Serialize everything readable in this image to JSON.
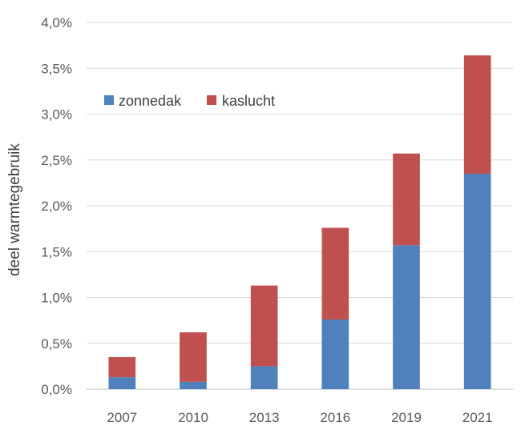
{
  "chart_data": {
    "type": "bar",
    "stacked": true,
    "title": "",
    "xlabel": "",
    "ylabel": "deel warmtegebruik",
    "categories": [
      "2007",
      "2010",
      "2013",
      "2016",
      "2019",
      "2021"
    ],
    "series": [
      {
        "name": "zonnedak",
        "color": "#4f81bd",
        "values": [
          0.13,
          0.08,
          0.25,
          0.76,
          1.57,
          2.35
        ]
      },
      {
        "name": "kaslucht",
        "color": "#c0504d",
        "values": [
          0.22,
          0.54,
          0.88,
          1.0,
          1.0,
          1.29
        ]
      }
    ],
    "ylim": [
      0,
      4.0
    ],
    "yticks": [
      "0,0%",
      "0,5%",
      "1,0%",
      "1,5%",
      "2,0%",
      "2,5%",
      "3,0%",
      "3,5%",
      "4,0%"
    ],
    "grid": true,
    "legend": "top-left"
  }
}
